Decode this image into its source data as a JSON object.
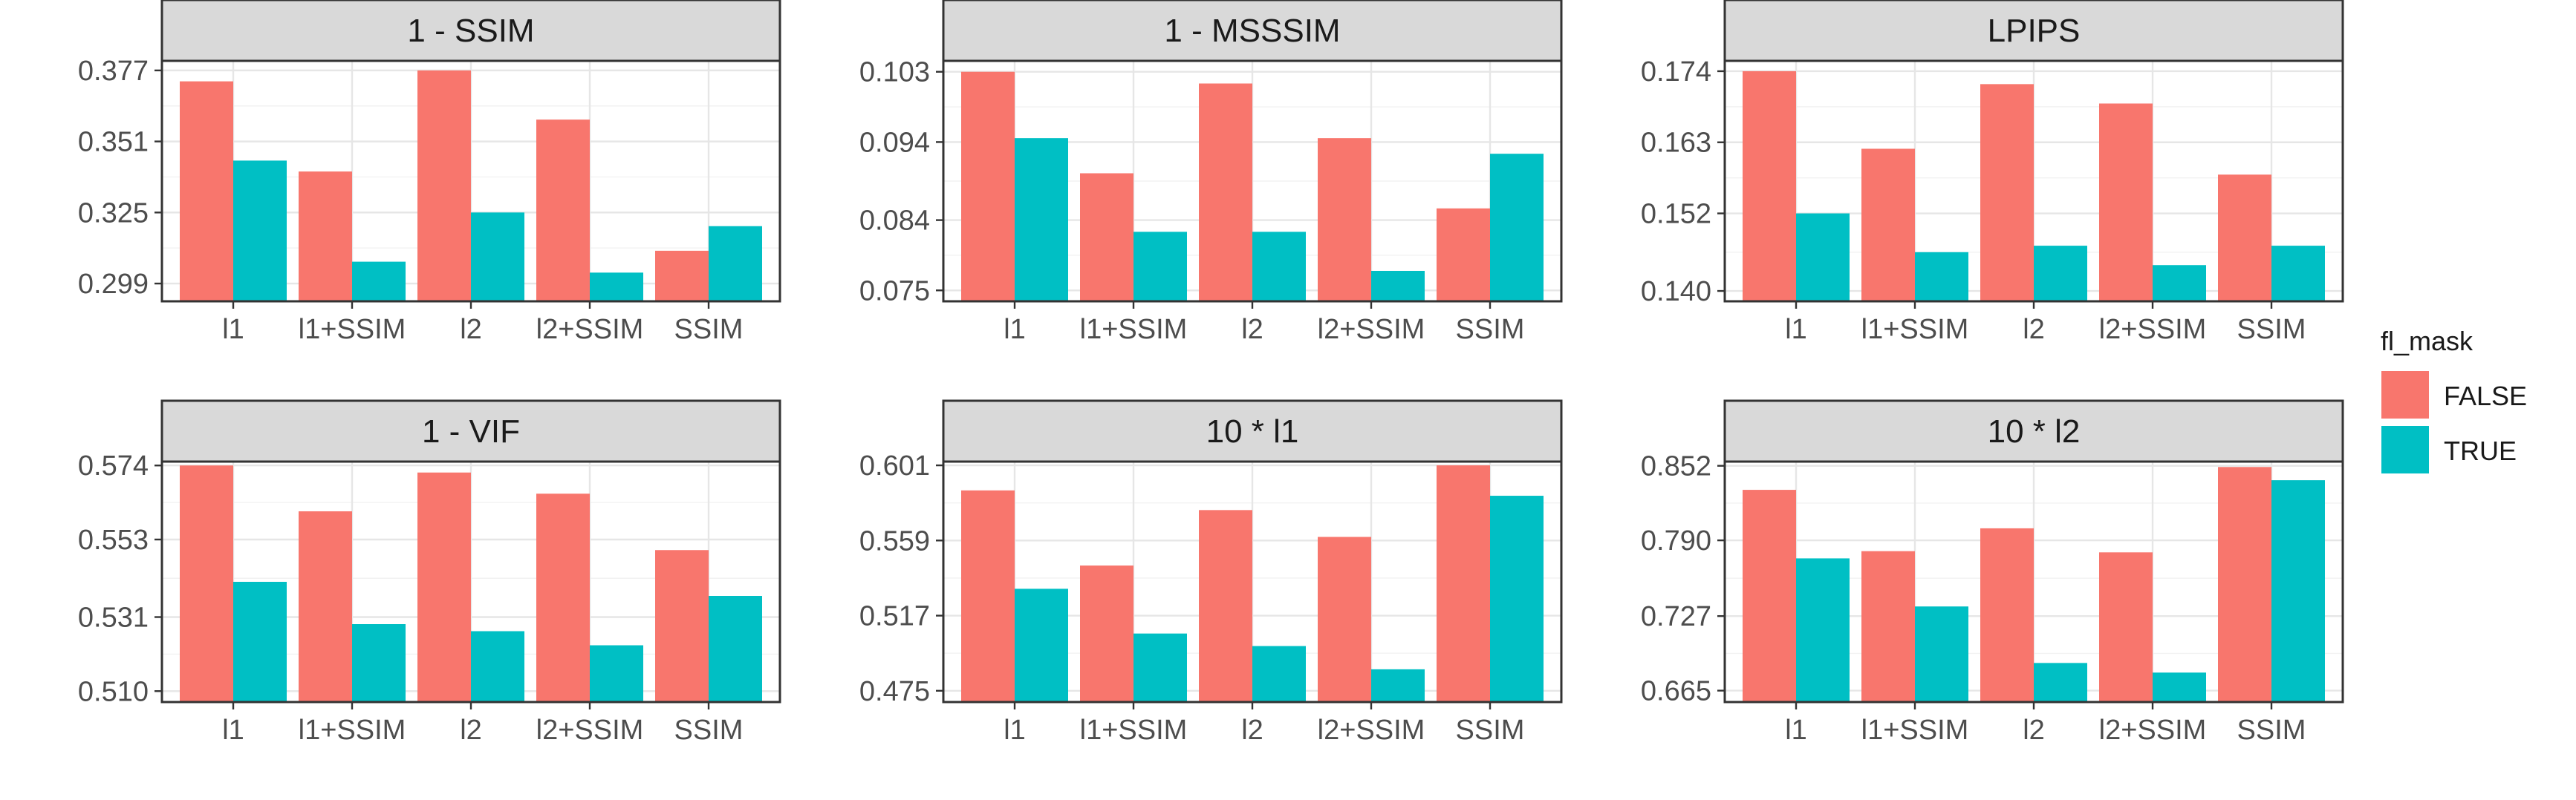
{
  "chart_data": [
    {
      "type": "bar",
      "title": "1 - SSIM",
      "categories": [
        "l1",
        "l1+SSIM",
        "l2",
        "l2+SSIM",
        "SSIM"
      ],
      "series": [
        {
          "name": "FALSE",
          "values": [
            0.373,
            0.34,
            0.377,
            0.359,
            0.311
          ]
        },
        {
          "name": "TRUE",
          "values": [
            0.344,
            0.307,
            0.325,
            0.303,
            0.32
          ]
        }
      ],
      "yticks": [
        "0.299",
        "0.325",
        "0.351",
        "0.377"
      ],
      "ylim": [
        0.2925,
        0.3805
      ]
    },
    {
      "type": "bar",
      "title": "1 - MSSSIM",
      "categories": [
        "l1",
        "l1+SSIM",
        "l2",
        "l2+SSIM",
        "SSIM"
      ],
      "series": [
        {
          "name": "FALSE",
          "values": [
            0.103,
            0.09,
            0.1015,
            0.0945,
            0.0855
          ]
        },
        {
          "name": "TRUE",
          "values": [
            0.0945,
            0.0825,
            0.0825,
            0.0775,
            0.0925
          ]
        }
      ],
      "yticks": [
        "0.075",
        "0.084",
        "0.094",
        "0.103"
      ],
      "ylim": [
        0.0736,
        0.1044
      ]
    },
    {
      "type": "bar",
      "title": "LPIPS",
      "categories": [
        "l1",
        "l1+SSIM",
        "l2",
        "l2+SSIM",
        "SSIM"
      ],
      "series": [
        {
          "name": "FALSE",
          "values": [
            0.174,
            0.162,
            0.172,
            0.169,
            0.158
          ]
        },
        {
          "name": "TRUE",
          "values": [
            0.152,
            0.146,
            0.147,
            0.144,
            0.147
          ]
        }
      ],
      "yticks": [
        "0.140",
        "0.152",
        "0.163",
        "0.174"
      ],
      "ylim": [
        0.1384,
        0.1756
      ]
    },
    {
      "type": "bar",
      "title": "1 - VIF",
      "categories": [
        "l1",
        "l1+SSIM",
        "l2",
        "l2+SSIM",
        "SSIM"
      ],
      "series": [
        {
          "name": "FALSE",
          "values": [
            0.574,
            0.561,
            0.572,
            0.566,
            0.55
          ]
        },
        {
          "name": "TRUE",
          "values": [
            0.541,
            0.529,
            0.527,
            0.523,
            0.537
          ]
        }
      ],
      "yticks": [
        "0.510",
        "0.531",
        "0.553",
        "0.574"
      ],
      "ylim": [
        0.5069,
        0.5751
      ]
    },
    {
      "type": "bar",
      "title": "10 * l1",
      "categories": [
        "l1",
        "l1+SSIM",
        "l2",
        "l2+SSIM",
        "SSIM"
      ],
      "series": [
        {
          "name": "FALSE",
          "values": [
            0.587,
            0.545,
            0.576,
            0.561,
            0.601
          ]
        },
        {
          "name": "TRUE",
          "values": [
            0.532,
            0.507,
            0.5,
            0.487,
            0.584
          ]
        }
      ],
      "yticks": [
        "0.475",
        "0.517",
        "0.559",
        "0.601"
      ],
      "ylim": [
        0.4687,
        0.6031
      ]
    },
    {
      "type": "bar",
      "title": "10 * l2",
      "categories": [
        "l1",
        "l1+SSIM",
        "l2",
        "l2+SSIM",
        "SSIM"
      ],
      "series": [
        {
          "name": "FALSE",
          "values": [
            0.832,
            0.781,
            0.8,
            0.78,
            0.851
          ]
        },
        {
          "name": "TRUE",
          "values": [
            0.775,
            0.735,
            0.688,
            0.68,
            0.84
          ]
        }
      ],
      "yticks": [
        "0.665",
        "0.727",
        "0.790",
        "0.852"
      ],
      "ylim": [
        0.6555,
        0.8555
      ]
    }
  ],
  "legend": {
    "title": "fl_mask",
    "items": [
      {
        "label": "FALSE",
        "color": "#F8766D"
      },
      {
        "label": "TRUE",
        "color": "#00BFC4"
      }
    ]
  }
}
